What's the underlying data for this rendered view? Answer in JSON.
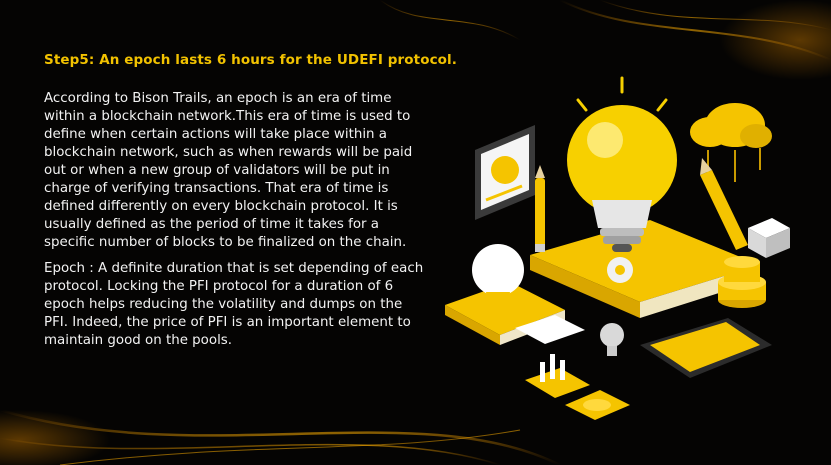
{
  "step": {
    "title": "Step5: An epoch lasts 6 hours for the UDEFI protocol."
  },
  "body": {
    "paragraph_1": "According to Bison Trails, an epoch is an era of time within a blockchain network.This era of time is used to define when certain actions will take place within a blockchain network, such as when rewards will be paid out or when a new group of validators will be put in charge of verifying transactions. That era of time is defined differently on every blockchain protocol. It is usually defined as the period of time it takes for a specific number of blocks to be finalized on the chain.",
    "paragraph_2": "Epoch : A definite duration that is set depending of each protocol. Locking the PFI protocol for a duration of 6 epoch helps reducing the volatility and dumps on the PFI. Indeed, the price of PFI is an important element to maintain good on the pools."
  },
  "colors": {
    "background": "#050403",
    "accent": "#f2c200",
    "text": "#f3f3f3"
  },
  "illustration": {
    "icons": [
      "lightbulb-icon",
      "cloud-icon",
      "gear-icon",
      "tablet-icon",
      "book-icon",
      "pencil-icon",
      "chart-icon",
      "coin-stack-icon"
    ]
  }
}
